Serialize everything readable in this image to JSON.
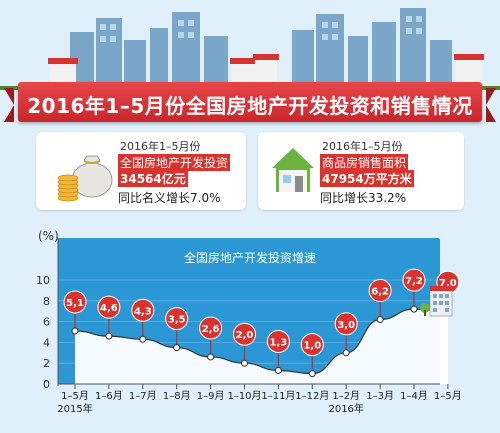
{
  "banner": {
    "title": "2016年1–5月份全国房地产开发投资和销售情况"
  },
  "cards": [
    {
      "date": "2016年1–5月份",
      "name": "全国房地产开发投资",
      "value": "34564亿元",
      "growth": "同比名义增长7.0%"
    },
    {
      "date": "2016年1–5月份",
      "name": "商品房销售面积",
      "value": "47954万平方米",
      "growth": "同比增长33.2%"
    }
  ],
  "colors": {
    "accent_red": "#d8332f",
    "chart_area": "#2b97d4",
    "area_fill": "#ffffff",
    "line": "#333333",
    "background": "#dff0fa"
  },
  "icons": [
    "money-bag-icon",
    "coin-stack-icon",
    "house-icon",
    "building-icon",
    "city-skyline"
  ],
  "chart_data": {
    "type": "line",
    "title": "全国房地产开发投资增速",
    "ylabel": "(%)",
    "ylim": [
      0,
      10
    ],
    "yticks": [
      0,
      2,
      4,
      6,
      8,
      10
    ],
    "categories": [
      "1–5月",
      "1–6月",
      "1–7月",
      "1–8月",
      "1–9月",
      "1–10月",
      "1–11月",
      "1–12月",
      "1–2月",
      "1–3月",
      "1–4月",
      "1–5月"
    ],
    "values": [
      5.1,
      4.6,
      4.3,
      3.5,
      2.6,
      2.0,
      1.3,
      1.0,
      3.0,
      6.2,
      7.2,
      7.0
    ],
    "data_labels": [
      "5,1",
      "4,6",
      "4,3",
      "3,5",
      "2,6",
      "2,0",
      "1,3",
      "1,0",
      "3,0",
      "6,2",
      "7,2",
      "7,0"
    ],
    "year_labels": [
      {
        "index": 0,
        "text": "2015年"
      },
      {
        "index": 8,
        "text": "2016年"
      }
    ]
  }
}
